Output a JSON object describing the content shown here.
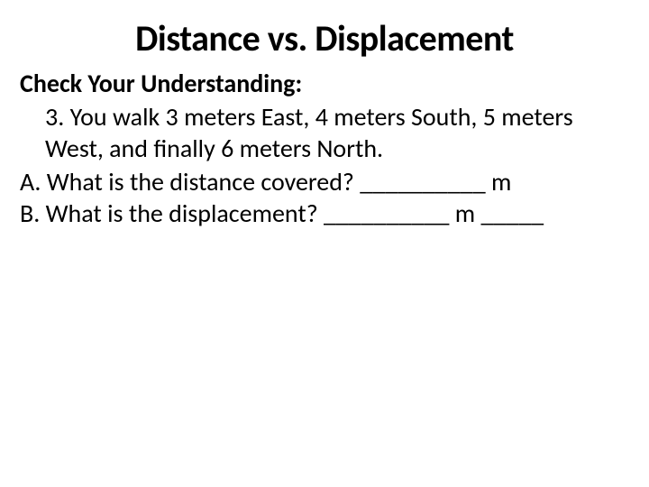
{
  "title": "Distance vs. Displacement",
  "subtitle": "Check Your Understanding:",
  "problem": "3. You walk 3 meters East, 4 meters South, 5 meters West, and finally 6 meters North.",
  "questionA": "A.  What is the distance covered? __________ m",
  "questionB": "B.  What is the displacement? __________ m _____",
  "colors": {
    "background": "#ffffff",
    "text": "#000000"
  },
  "typography": {
    "title_fontsize": 40,
    "body_fontsize": 28,
    "title_weight": 700,
    "subtitle_weight": 700,
    "body_weight": 400,
    "font_family": "Calibri"
  }
}
